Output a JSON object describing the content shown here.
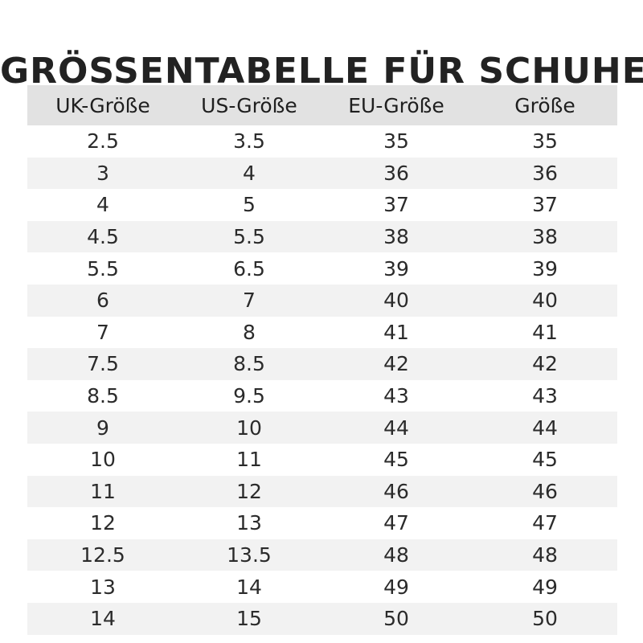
{
  "title": "GRÖSSENTABELLE FÜR SCHUHE",
  "table": {
    "headers": [
      "UK-Größe",
      "US-Größe",
      "EU-Größe",
      "Größe"
    ],
    "rows": [
      [
        "2.5",
        "3.5",
        "35",
        "35"
      ],
      [
        "3",
        "4",
        "36",
        "36"
      ],
      [
        "4",
        "5",
        "37",
        "37"
      ],
      [
        "4.5",
        "5.5",
        "38",
        "38"
      ],
      [
        "5.5",
        "6.5",
        "39",
        "39"
      ],
      [
        "6",
        "7",
        "40",
        "40"
      ],
      [
        "7",
        "8",
        "41",
        "41"
      ],
      [
        "7.5",
        "8.5",
        "42",
        "42"
      ],
      [
        "8.5",
        "9.5",
        "43",
        "43"
      ],
      [
        "9",
        "10",
        "44",
        "44"
      ],
      [
        "10",
        "11",
        "45",
        "45"
      ],
      [
        "11",
        "12",
        "46",
        "46"
      ],
      [
        "12",
        "13",
        "47",
        "47"
      ],
      [
        "12.5",
        "13.5",
        "48",
        "48"
      ],
      [
        "13",
        "14",
        "49",
        "49"
      ],
      [
        "14",
        "15",
        "50",
        "50"
      ]
    ]
  },
  "colors": {
    "header_background": "#e2e2e2",
    "stripe_background": "#f2f2f2",
    "text": "#222222"
  }
}
